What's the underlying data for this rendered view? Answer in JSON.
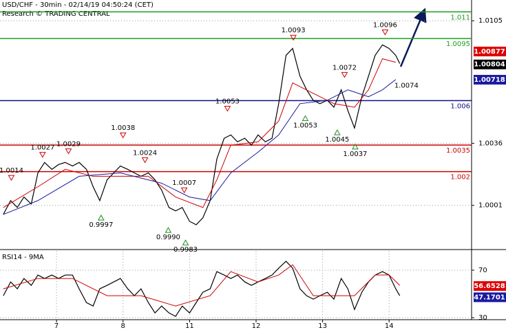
{
  "chart_data": [
    {
      "type": "line",
      "title": "USD/CHF - 30min - 02/14/19 04:50:24 (CET)",
      "subtitle": "Research © TRADING CENTRAL",
      "xlim": [
        0.15,
        7.24
      ],
      "xticks": [
        {
          "value": 1,
          "label": "7"
        },
        {
          "value": 2,
          "label": "8"
        },
        {
          "value": 3,
          "label": "11"
        },
        {
          "value": 4,
          "label": "12"
        },
        {
          "value": 5,
          "label": "13"
        },
        {
          "value": 6,
          "label": "14"
        }
      ],
      "ylim": [
        0.99765,
        1.01167
      ],
      "yticks": [
        1.0105,
        1.0036,
        1.0001
      ],
      "grid": true,
      "x": [
        0.2,
        0.31,
        0.41,
        0.51,
        0.62,
        0.72,
        0.82,
        0.93,
        1.03,
        1.13,
        1.24,
        1.34,
        1.45,
        1.55,
        1.65,
        1.76,
        1.86,
        1.96,
        2.07,
        2.17,
        2.27,
        2.38,
        2.48,
        2.58,
        2.69,
        2.79,
        2.89,
        3.0,
        3.1,
        3.2,
        3.31,
        3.41,
        3.52,
        3.62,
        3.72,
        3.83,
        3.93,
        4.03,
        4.14,
        4.24,
        4.34,
        4.45,
        4.55,
        4.66,
        4.76,
        4.86,
        4.96,
        5.07,
        5.17,
        5.28,
        5.38,
        5.48,
        5.59,
        5.69,
        5.79,
        5.9,
        6.0,
        6.1,
        6.16
      ],
      "series": [
        {
          "name": "USD/CHF",
          "color": "#000000",
          "values": [
            0.99959,
            1.00037,
            0.99998,
            1.00057,
            1.00018,
            1.00193,
            1.00252,
            1.00213,
            1.0024,
            1.00252,
            1.00232,
            1.00252,
            1.00213,
            1.00115,
            1.00037,
            1.00154,
            1.00193,
            1.00232,
            1.00213,
            1.00193,
            1.00174,
            1.00193,
            1.00154,
            1.00096,
            0.99998,
            0.99979,
            0.99998,
            0.9992,
            0.99901,
            0.9994,
            1.00037,
            1.00271,
            1.00388,
            1.00407,
            1.00368,
            1.00388,
            1.00349,
            1.00407,
            1.00368,
            1.00388,
            1.00583,
            1.00855,
            1.00894,
            1.00738,
            1.00661,
            1.00602,
            1.00583,
            1.00602,
            1.00563,
            1.00661,
            1.00544,
            1.00446,
            1.00622,
            1.00738,
            1.00855,
            1.00914,
            1.00894,
            1.00855,
            1.00809
          ]
        },
        {
          "color": "#cc0000",
          "x": [
            0.2,
            0.72,
            1.13,
            1.55,
            1.96,
            2.38,
            2.79,
            3.2,
            3.41,
            3.62,
            4.03,
            4.34,
            4.55,
            4.86,
            5.17,
            5.48,
            5.69,
            5.9,
            6.1
          ],
          "values": [
            0.99998,
            1.00115,
            1.00213,
            1.00174,
            1.00174,
            1.00174,
            1.00057,
            0.99998,
            1.00154,
            1.00349,
            1.00368,
            1.00485,
            1.007,
            1.00641,
            1.00583,
            1.00563,
            1.00661,
            1.00836,
            1.00816
          ]
        },
        {
          "color": "#1a1aa0",
          "x": [
            0.2,
            0.72,
            1.34,
            1.96,
            2.58,
            3.0,
            3.31,
            3.62,
            4.03,
            4.34,
            4.66,
            5.07,
            5.38,
            5.69,
            5.9,
            6.1
          ],
          "values": [
            0.99959,
            1.00037,
            1.00174,
            1.00193,
            1.00135,
            1.00057,
            1.00037,
            1.00193,
            1.0031,
            1.00407,
            1.00583,
            1.00602,
            1.00661,
            1.00622,
            1.00661,
            1.00719
          ]
        }
      ],
      "levels": [
        {
          "value": 1.011,
          "color": "#1e9e1e"
        },
        {
          "value": 1.0095,
          "color": "#1e9e1e"
        },
        {
          "value": 1.006,
          "color": "#101080"
        },
        {
          "value": 1.0035,
          "color": "#cc0000"
        },
        {
          "value": 1.002,
          "color": "#cc0000"
        }
      ],
      "price_labels": [
        {
          "value": 1.00877,
          "color": "#dd0000"
        },
        {
          "value": 1.00804,
          "color": "#000000"
        },
        {
          "value": 1.00718,
          "color": "#1a1aa0"
        }
      ],
      "annotations": [
        {
          "x": 0.32,
          "value": 1.0014,
          "label": "1.0014",
          "marker": "down"
        },
        {
          "x": 0.79,
          "value": 1.0027,
          "label": "1.0027",
          "marker": "down"
        },
        {
          "x": 1.18,
          "value": 1.0029,
          "label": "1.0029",
          "marker": "down"
        },
        {
          "x": 2.0,
          "value": 1.0038,
          "label": "1.0038",
          "marker": "down"
        },
        {
          "x": 2.33,
          "value": 1.0024,
          "label": "1.0024",
          "marker": "down"
        },
        {
          "x": 2.92,
          "value": 1.0007,
          "label": "1.0007",
          "marker": "down"
        },
        {
          "x": 3.57,
          "value": 1.0053,
          "label": "1.0053",
          "marker": "down"
        },
        {
          "x": 4.56,
          "value": 1.0093,
          "label": "1.0093",
          "marker": "down"
        },
        {
          "x": 5.33,
          "value": 1.0072,
          "label": "1.0072",
          "marker": "down"
        },
        {
          "x": 5.94,
          "value": 1.0096,
          "label": "1.0096",
          "marker": "down"
        },
        {
          "x": 1.67,
          "value": 0.9997,
          "label": "0.9997",
          "marker": "up"
        },
        {
          "x": 2.68,
          "value": 0.999,
          "label": "0.9990",
          "marker": "up"
        },
        {
          "x": 2.94,
          "value": 0.9983,
          "label": "0.9983",
          "marker": "up"
        },
        {
          "x": 4.74,
          "value": 1.0053,
          "label": "1.0053",
          "marker": "up"
        },
        {
          "x": 5.22,
          "value": 1.0045,
          "label": "1.0045",
          "marker": "up"
        },
        {
          "x": 5.49,
          "value": 1.0037,
          "label": "1.0037",
          "marker": "up"
        },
        {
          "x": 6.26,
          "value": 1.0074,
          "label": "1.0074",
          "marker": "none"
        }
      ]
    },
    {
      "type": "line",
      "title": "RSI14 - 9MA",
      "xlim": [
        0.15,
        7.24
      ],
      "ylim": [
        28.3,
        86.2
      ],
      "yticks": [
        70,
        30
      ],
      "x": [
        0.2,
        0.31,
        0.41,
        0.51,
        0.62,
        0.72,
        0.82,
        0.93,
        1.03,
        1.13,
        1.24,
        1.34,
        1.45,
        1.55,
        1.65,
        1.76,
        1.86,
        1.96,
        2.07,
        2.17,
        2.27,
        2.38,
        2.48,
        2.58,
        2.69,
        2.79,
        2.89,
        3.0,
        3.1,
        3.2,
        3.31,
        3.41,
        3.52,
        3.62,
        3.72,
        3.83,
        3.93,
        4.03,
        4.14,
        4.24,
        4.34,
        4.45,
        4.55,
        4.66,
        4.76,
        4.86,
        4.96,
        5.07,
        5.17,
        5.28,
        5.38,
        5.48,
        5.59,
        5.69,
        5.79,
        5.9,
        6.0,
        6.1,
        6.16
      ],
      "series": [
        {
          "color": "#000000",
          "values": [
            48.5,
            60.1,
            54.3,
            63.0,
            57.2,
            65.9,
            63.0,
            65.9,
            63.0,
            65.9,
            65.9,
            54.3,
            42.7,
            39.8,
            54.3,
            57.2,
            60.1,
            63.0,
            54.3,
            48.5,
            54.3,
            42.7,
            34.0,
            39.8,
            34.0,
            31.1,
            39.8,
            34.0,
            42.7,
            51.4,
            54.3,
            68.8,
            65.9,
            63.0,
            65.9,
            60.1,
            57.2,
            60.1,
            63.0,
            65.9,
            71.7,
            77.5,
            71.7,
            54.3,
            48.5,
            45.6,
            48.5,
            51.4,
            45.6,
            63.0,
            54.3,
            36.9,
            51.4,
            60.1,
            65.9,
            68.8,
            65.9,
            54.3,
            48.5
          ]
        },
        {
          "color": "#cc0000",
          "x": [
            0.2,
            0.72,
            1.24,
            1.76,
            2.27,
            2.79,
            3.31,
            3.62,
            4.03,
            4.34,
            4.55,
            4.86,
            5.17,
            5.48,
            5.79,
            6.0,
            6.16
          ],
          "values": [
            54.3,
            63.0,
            63.0,
            48.5,
            48.5,
            39.8,
            48.5,
            68.8,
            60.1,
            65.9,
            74.6,
            48.5,
            48.5,
            48.5,
            65.9,
            65.9,
            57.2
          ]
        }
      ],
      "price_labels": [
        {
          "value": 56.6528,
          "color": "#dd0000"
        },
        {
          "value": 47.1701,
          "color": "#1a1aa0"
        }
      ]
    }
  ]
}
